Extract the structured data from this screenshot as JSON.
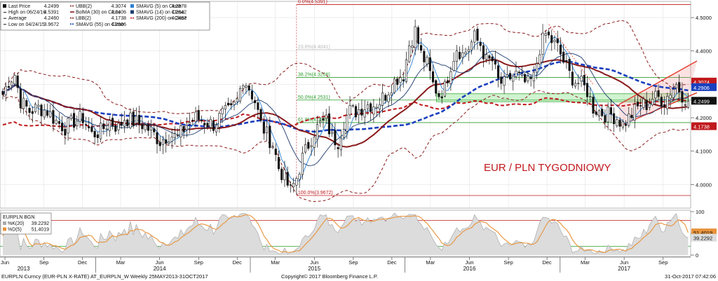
{
  "chart_data": {
    "type": "candlestick",
    "title": "EUR / PLN TYGODNIOWY",
    "title_color": "#c0181c",
    "x_start": "2013-05-27",
    "x_end": "2017-10-31",
    "ylim": [
      3.94,
      4.54
    ],
    "y_ticks": [
      {
        "value": 4.5,
        "label": "4.5000"
      },
      {
        "value": 4.4,
        "label": "4.4000"
      },
      {
        "value": 4.3,
        "label": "4.3000"
      },
      {
        "value": 4.2,
        "label": "4.2000"
      },
      {
        "value": 4.1,
        "label": "4.1000"
      },
      {
        "value": 4.0,
        "label": "4.0000"
      }
    ],
    "x_ticks": [
      {
        "date": "2013-06-01",
        "label": "Jun"
      },
      {
        "date": "2013-09-01",
        "label": "Sep"
      },
      {
        "date": "2013-12-01",
        "label": "Dec"
      },
      {
        "date": "2014-03-01",
        "label": "Mar"
      },
      {
        "date": "2014-06-01",
        "label": "Jun"
      },
      {
        "date": "2014-09-01",
        "label": "Sep"
      },
      {
        "date": "2014-12-01",
        "label": "Dec"
      },
      {
        "date": "2015-03-01",
        "label": "Mar"
      },
      {
        "date": "2015-06-01",
        "label": "Jun"
      },
      {
        "date": "2015-09-01",
        "label": "Sep"
      },
      {
        "date": "2015-12-01",
        "label": "Dec"
      },
      {
        "date": "2016-03-01",
        "label": "Mar"
      },
      {
        "date": "2016-06-01",
        "label": "Jun"
      },
      {
        "date": "2016-09-01",
        "label": "Sep"
      },
      {
        "date": "2016-12-01",
        "label": "Dec"
      },
      {
        "date": "2017-03-01",
        "label": "Mar"
      },
      {
        "date": "2017-06-01",
        "label": "Jun"
      },
      {
        "date": "2017-09-01",
        "label": "Sep"
      }
    ],
    "year_labels": [
      {
        "date": "2013-07-15",
        "label": "2013"
      },
      {
        "date": "2014-06-01",
        "label": "2014"
      },
      {
        "date": "2015-06-01",
        "label": "2015"
      },
      {
        "date": "2016-06-01",
        "label": "2016"
      },
      {
        "date": "2017-06-01",
        "label": "2017"
      }
    ],
    "price_path": [
      [
        "2013-05-27",
        4.27
      ],
      [
        "2013-06-10",
        4.31
      ],
      [
        "2013-06-24",
        4.33
      ],
      [
        "2013-07-08",
        4.25
      ],
      [
        "2013-07-29",
        4.22
      ],
      [
        "2013-08-19",
        4.23
      ],
      [
        "2013-09-09",
        4.22
      ],
      [
        "2013-09-30",
        4.19
      ],
      [
        "2013-10-21",
        4.17
      ],
      [
        "2013-11-11",
        4.19
      ],
      [
        "2013-12-02",
        4.2
      ],
      [
        "2013-12-23",
        4.15
      ],
      [
        "2014-01-13",
        4.16
      ],
      [
        "2014-02-03",
        4.19
      ],
      [
        "2014-02-24",
        4.17
      ],
      [
        "2014-03-10",
        4.2
      ],
      [
        "2014-03-31",
        4.19
      ],
      [
        "2014-04-21",
        4.18
      ],
      [
        "2014-05-12",
        4.16
      ],
      [
        "2014-06-02",
        4.13
      ],
      [
        "2014-06-23",
        4.15
      ],
      [
        "2014-07-14",
        4.14
      ],
      [
        "2014-08-04",
        4.18
      ],
      [
        "2014-08-25",
        4.2
      ],
      [
        "2014-09-15",
        4.19
      ],
      [
        "2014-10-06",
        4.18
      ],
      [
        "2014-10-27",
        4.21
      ],
      [
        "2014-11-17",
        4.22
      ],
      [
        "2014-12-01",
        4.25
      ],
      [
        "2014-12-15",
        4.32
      ],
      [
        "2014-12-29",
        4.29
      ],
      [
        "2015-01-12",
        4.25
      ],
      [
        "2015-01-26",
        4.18
      ],
      [
        "2015-02-09",
        4.15
      ],
      [
        "2015-02-23",
        4.12
      ],
      [
        "2015-03-09",
        4.05
      ],
      [
        "2015-03-23",
        4.02
      ],
      [
        "2015-04-06",
        3.98
      ],
      [
        "2015-04-20",
        4.02
      ],
      [
        "2015-05-04",
        4.08
      ],
      [
        "2015-05-18",
        4.12
      ],
      [
        "2015-06-01",
        4.16
      ],
      [
        "2015-06-15",
        4.18
      ],
      [
        "2015-06-29",
        4.19
      ],
      [
        "2015-07-13",
        4.14
      ],
      [
        "2015-07-27",
        4.13
      ],
      [
        "2015-08-10",
        4.19
      ],
      [
        "2015-08-24",
        4.22
      ],
      [
        "2015-09-07",
        4.22
      ],
      [
        "2015-09-21",
        4.23
      ],
      [
        "2015-10-05",
        4.24
      ],
      [
        "2015-10-19",
        4.24
      ],
      [
        "2015-11-02",
        4.25
      ],
      [
        "2015-11-16",
        4.27
      ],
      [
        "2015-11-30",
        4.3
      ],
      [
        "2015-12-14",
        4.32
      ],
      [
        "2015-12-28",
        4.33
      ],
      [
        "2016-01-11",
        4.42
      ],
      [
        "2016-01-25",
        4.46
      ],
      [
        "2016-02-08",
        4.39
      ],
      [
        "2016-02-22",
        4.36
      ],
      [
        "2016-03-07",
        4.3
      ],
      [
        "2016-03-21",
        4.27
      ],
      [
        "2016-04-04",
        4.29
      ],
      [
        "2016-04-18",
        4.36
      ],
      [
        "2016-05-02",
        4.41
      ],
      [
        "2016-05-16",
        4.39
      ],
      [
        "2016-05-30",
        4.41
      ],
      [
        "2016-06-13",
        4.44
      ],
      [
        "2016-06-27",
        4.42
      ],
      [
        "2016-07-11",
        4.37
      ],
      [
        "2016-07-25",
        4.37
      ],
      [
        "2016-08-08",
        4.31
      ],
      [
        "2016-08-22",
        4.3
      ],
      [
        "2016-09-05",
        4.32
      ],
      [
        "2016-09-19",
        4.33
      ],
      [
        "2016-10-03",
        4.31
      ],
      [
        "2016-10-17",
        4.3
      ],
      [
        "2016-10-31",
        4.32
      ],
      [
        "2016-11-14",
        4.41
      ],
      [
        "2016-11-28",
        4.45
      ],
      [
        "2016-12-12",
        4.43
      ],
      [
        "2016-12-26",
        4.41
      ],
      [
        "2017-01-09",
        4.37
      ],
      [
        "2017-01-23",
        4.33
      ],
      [
        "2017-02-06",
        4.31
      ],
      [
        "2017-02-20",
        4.3
      ],
      [
        "2017-03-06",
        4.28
      ],
      [
        "2017-03-20",
        4.23
      ],
      [
        "2017-04-03",
        4.22
      ],
      [
        "2017-04-17",
        4.21
      ],
      [
        "2017-05-01",
        4.21
      ],
      [
        "2017-05-15",
        4.2
      ],
      [
        "2017-05-29",
        4.18
      ],
      [
        "2017-06-12",
        4.2
      ],
      [
        "2017-06-26",
        4.22
      ],
      [
        "2017-07-10",
        4.24
      ],
      [
        "2017-07-24",
        4.24
      ],
      [
        "2017-08-07",
        4.26
      ],
      [
        "2017-08-21",
        4.26
      ],
      [
        "2017-09-04",
        4.25
      ],
      [
        "2017-09-18",
        4.28
      ],
      [
        "2017-10-02",
        4.3
      ],
      [
        "2017-10-16",
        4.27
      ],
      [
        "2017-10-30",
        4.25
      ]
    ],
    "legend": [
      {
        "name": "Last Price",
        "value": "4.2499",
        "color": "#111111",
        "style": "box"
      },
      {
        "name": "High on 06/24/16",
        "value": "4.5391",
        "color": "#111111",
        "style": "tick"
      },
      {
        "name": "Average",
        "value": "4.2460",
        "color": "#111111",
        "style": "tick"
      },
      {
        "name": "Low on 04/24/15",
        "value": "3.9672",
        "color": "#111111",
        "style": "tick"
      },
      {
        "name": "UBB(2)",
        "value": "4.3074",
        "color": "#8b1a1a",
        "style": "dashed"
      },
      {
        "name": "BolMA (30) on Close",
        "value": "4.2406",
        "color": "#8b1a1a",
        "style": "solid"
      },
      {
        "name": "LBB(2)",
        "value": "4.1738",
        "color": "#8b1a1a",
        "style": "dashed"
      },
      {
        "name": "SMAVG (55) on Close",
        "value": "4.2906",
        "color": "#1a3fbf",
        "style": "dashed"
      },
      {
        "name": "SMAVG (5) on Close",
        "value": "4.2578",
        "color": "#2a7fd4",
        "style": "box"
      },
      {
        "name": "SMAVG (14) on Close",
        "value": "4.2642",
        "color": "#1d3a6e",
        "style": "box"
      },
      {
        "name": "SMAVG (200) on Close",
        "value": "4.2497",
        "color": "#c0181c",
        "style": "dashed"
      }
    ],
    "fib_levels": [
      {
        "label": "0.0%(4.5391)",
        "value": 4.5391,
        "color": "#c0181c"
      },
      {
        "label": "23.6%(4.4041)",
        "value": 4.4041,
        "color": "#bbbbbb"
      },
      {
        "label": "38.2%(4.3206)",
        "value": 4.3206,
        "color": "#2e9e2e"
      },
      {
        "label": "50.0%(4.2531)",
        "value": 4.2531,
        "color": "#2e9e2e"
      },
      {
        "label": "61.8%(4.1856)",
        "value": 4.1856,
        "color": "#2e9e2e"
      },
      {
        "label": "100.0%(3.9672)",
        "value": 3.9672,
        "color": "#c0181c"
      }
    ],
    "price_badges": [
      {
        "label": "4.3074",
        "value": 4.3074,
        "color": "#c0181c"
      },
      {
        "label": "4.2906",
        "value": 4.2906,
        "color": "#1a3fbf"
      },
      {
        "label": "4.2499",
        "value": 4.2499,
        "color": "#111111"
      },
      {
        "label": "4.1738",
        "value": 4.1738,
        "color": "#c0181c"
      }
    ],
    "oscillator": {
      "title": "EURPLN BGN",
      "legend": [
        {
          "name": "%K(20)",
          "value": "39.2292",
          "color": "#aaaaaa"
        },
        {
          "name": "%D(5)",
          "value": "51.4019",
          "color": "#e8923a"
        }
      ],
      "ylim": [
        0,
        100
      ],
      "y_ticks": [
        {
          "value": 100,
          "label": "100"
        },
        {
          "value": 50,
          "label": "50"
        },
        {
          "value": 0,
          "label": "0"
        }
      ],
      "levels": [
        80,
        20
      ],
      "badges": [
        {
          "label": "51.4019",
          "value": 51.4019,
          "color": "#e8923a"
        },
        {
          "label": "39.2292",
          "value": 39.2292,
          "color": "#dddddd"
        }
      ]
    },
    "footer": {
      "left": "EURPLN Curncy (EUR-PLN X-RATE) AT_EURPLN_W  Weekly 25MAY2013-31OCT2017",
      "center": "Copyright© 2017 Bloomberg Finance L.P.",
      "right": "31-Oct-2017 07:42:06"
    }
  }
}
